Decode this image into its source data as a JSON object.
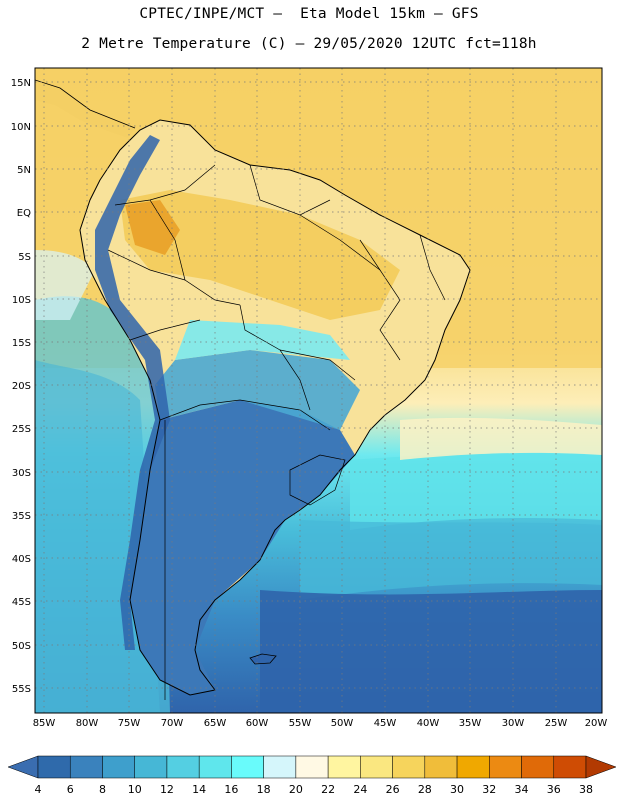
{
  "header": {
    "line1": "CPTEC/INPE/MCT –  Eta Model 15km – GFS",
    "line2": "2 Metre Temperature (C) – 29/05/2020 12UTC fct=118h"
  },
  "axes": {
    "lat_labels": [
      "15N",
      "10N",
      "5N",
      "EQ",
      "5S",
      "10S",
      "15S",
      "20S",
      "25S",
      "30S",
      "35S",
      "40S",
      "45S",
      "50S",
      "55S"
    ],
    "lon_labels": [
      "85W",
      "80W",
      "75W",
      "70W",
      "65W",
      "60W",
      "55W",
      "50W",
      "45W",
      "40W",
      "35W",
      "30W",
      "25W",
      "20W"
    ]
  },
  "colorbar": {
    "labels": [
      "4",
      "6",
      "8",
      "10",
      "12",
      "14",
      "16",
      "18",
      "20",
      "22",
      "24",
      "26",
      "28",
      "30",
      "32",
      "34",
      "36",
      "38"
    ],
    "colors": [
      "#3a6db0",
      "#2f6aab",
      "#3a82bd",
      "#3e9fcc",
      "#46b7d6",
      "#54cfe2",
      "#5fe6ec",
      "#69fbfb",
      "#d5f6fb",
      "#fff9e4",
      "#fff5a0",
      "#fae780",
      "#f6d45c",
      "#f0bd3a",
      "#f0a800",
      "#ec8a12",
      "#e06a08",
      "#cf4c04",
      "#b23a02"
    ]
  }
}
